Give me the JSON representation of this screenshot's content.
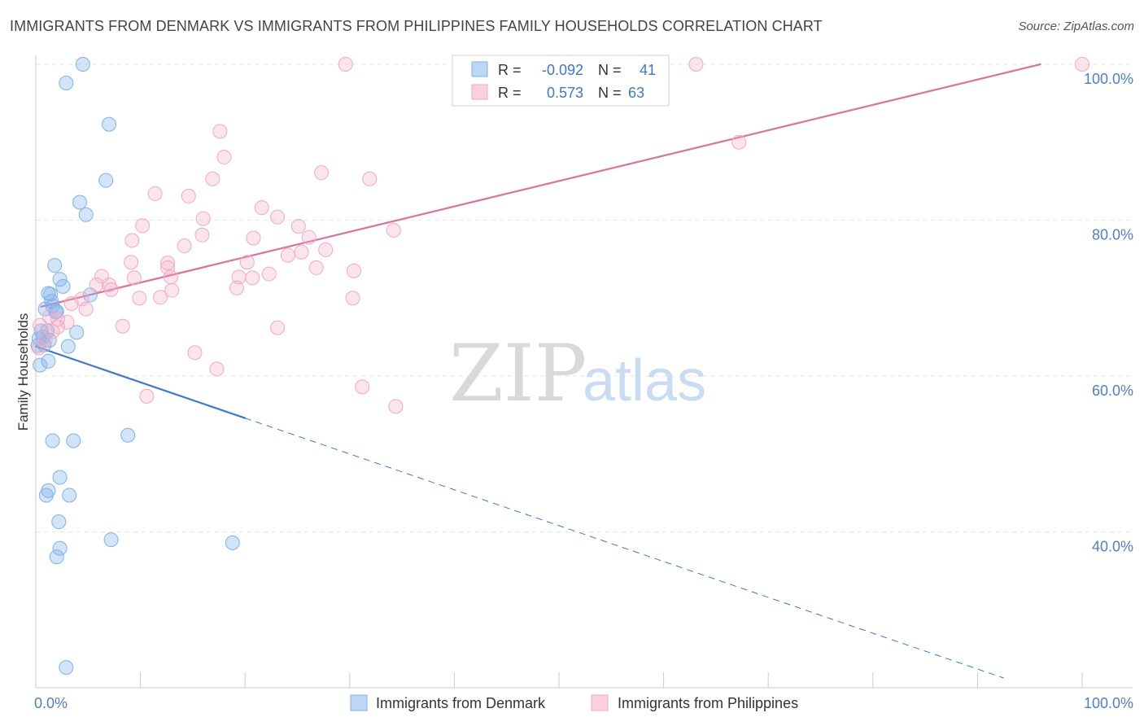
{
  "title": "IMMIGRANTS FROM DENMARK VS IMMIGRANTS FROM PHILIPPINES FAMILY HOUSEHOLDS CORRELATION CHART",
  "source": "Source: ZipAtlas.com",
  "watermark": {
    "zip": "ZIP",
    "atlas": "atlas"
  },
  "chart_data": {
    "type": "scatter",
    "xlabel": "",
    "ylabel": "Family Households",
    "xlim": [
      0,
      100
    ],
    "ylim": [
      20,
      100
    ],
    "x_tick_labels": [
      {
        "value": 0,
        "label": "0.0%"
      },
      {
        "value": 100,
        "label": "100.0%"
      }
    ],
    "y_tick_labels": [
      {
        "value": 40,
        "label": "40.0%"
      },
      {
        "value": 60,
        "label": "60.0%"
      },
      {
        "value": 80,
        "label": "80.0%"
      },
      {
        "value": 100,
        "label": "100.0%"
      }
    ],
    "grid": true,
    "legend_position": "bottom-center",
    "stats_position": "top-center",
    "series": [
      {
        "name": "Immigrants from Denmark",
        "color": "#7eb3ea",
        "line_color": "#3a78d4",
        "r_label": "R =",
        "r_value": "-0.092",
        "n_label": "N =",
        "n_value": "41",
        "trend": {
          "x0": 0,
          "y0": 63.8,
          "x1": 20,
          "y1": 54.6,
          "dash_to_x": 92.5
        },
        "points": [
          [
            4.5,
            100
          ],
          [
            2.9,
            97.6
          ],
          [
            7.0,
            92.3
          ],
          [
            6.7,
            85.1
          ],
          [
            4.2,
            82.3
          ],
          [
            4.8,
            80.7
          ],
          [
            1.8,
            74.2
          ],
          [
            2.3,
            72.4
          ],
          [
            1.2,
            70.6
          ],
          [
            2.6,
            71.5
          ],
          [
            1.4,
            70.5
          ],
          [
            1.6,
            69.0
          ],
          [
            1.9,
            68.2
          ],
          [
            0.9,
            68.6
          ],
          [
            5.2,
            70.4
          ],
          [
            0.5,
            65.8
          ],
          [
            0.3,
            64.8
          ],
          [
            1.3,
            64.6
          ],
          [
            0.8,
            64.0
          ],
          [
            0.2,
            63.9
          ],
          [
            3.1,
            63.8
          ],
          [
            1.2,
            61.9
          ],
          [
            0.4,
            61.4
          ],
          [
            3.9,
            65.6
          ],
          [
            8.8,
            52.4
          ],
          [
            1.6,
            51.7
          ],
          [
            3.6,
            51.7
          ],
          [
            2.3,
            47.0
          ],
          [
            1.2,
            45.3
          ],
          [
            3.2,
            44.7
          ],
          [
            1.0,
            44.7
          ],
          [
            2.2,
            41.3
          ],
          [
            7.2,
            39.0
          ],
          [
            18.8,
            38.6
          ],
          [
            2.3,
            37.9
          ],
          [
            2.0,
            36.8
          ],
          [
            2.9,
            22.6
          ],
          [
            1.1,
            65.8
          ],
          [
            0.7,
            65.0
          ],
          [
            2.0,
            68.3
          ],
          [
            1.5,
            69.6
          ]
        ]
      },
      {
        "name": "Immigrants from Philippines",
        "color": "#f3a8c2",
        "line_color": "#e07098",
        "r_label": "R =",
        "r_value": "0.573",
        "n_label": "N =",
        "n_value": "63",
        "trend": {
          "x0": 0.5,
          "y0": 68.9,
          "x1": 96,
          "y1": 100
        },
        "points": [
          [
            29.6,
            100
          ],
          [
            63.1,
            100
          ],
          [
            100,
            100
          ],
          [
            17.6,
            91.4
          ],
          [
            67.2,
            90.0
          ],
          [
            18.0,
            88.1
          ],
          [
            27.3,
            86.1
          ],
          [
            31.9,
            85.3
          ],
          [
            16.9,
            85.3
          ],
          [
            11.4,
            83.4
          ],
          [
            14.6,
            83.1
          ],
          [
            21.6,
            81.6
          ],
          [
            16.0,
            80.2
          ],
          [
            23.1,
            80.4
          ],
          [
            10.2,
            79.3
          ],
          [
            25.1,
            79.2
          ],
          [
            34.2,
            78.7
          ],
          [
            15.9,
            78.1
          ],
          [
            20.8,
            77.7
          ],
          [
            26.1,
            77.8
          ],
          [
            9.2,
            77.4
          ],
          [
            14.2,
            76.7
          ],
          [
            27.7,
            76.2
          ],
          [
            25.4,
            75.9
          ],
          [
            24.1,
            75.5
          ],
          [
            9.1,
            74.6
          ],
          [
            12.6,
            74.5
          ],
          [
            20.2,
            74.6
          ],
          [
            12.6,
            73.9
          ],
          [
            26.8,
            73.9
          ],
          [
            30.4,
            73.5
          ],
          [
            6.3,
            72.8
          ],
          [
            9.4,
            72.6
          ],
          [
            22.3,
            73.1
          ],
          [
            19.4,
            72.7
          ],
          [
            20.7,
            72.6
          ],
          [
            12.9,
            72.7
          ],
          [
            5.8,
            71.7
          ],
          [
            7.0,
            71.7
          ],
          [
            7.2,
            71.1
          ],
          [
            19.2,
            71.3
          ],
          [
            13.0,
            71.0
          ],
          [
            9.9,
            70.0
          ],
          [
            11.9,
            70.1
          ],
          [
            4.4,
            69.9
          ],
          [
            30.3,
            70.0
          ],
          [
            3.4,
            69.3
          ],
          [
            4.8,
            68.6
          ],
          [
            1.3,
            67.6
          ],
          [
            2.1,
            67.3
          ],
          [
            3.0,
            66.9
          ],
          [
            0.4,
            66.5
          ],
          [
            2.1,
            66.3
          ],
          [
            8.3,
            66.4
          ],
          [
            23.1,
            66.2
          ],
          [
            1.6,
            65.7
          ],
          [
            0.9,
            64.6
          ],
          [
            15.2,
            63.0
          ],
          [
            17.3,
            60.9
          ],
          [
            31.2,
            58.6
          ],
          [
            10.6,
            57.4
          ],
          [
            34.4,
            56.1
          ],
          [
            0.3,
            63.6
          ]
        ]
      }
    ]
  }
}
